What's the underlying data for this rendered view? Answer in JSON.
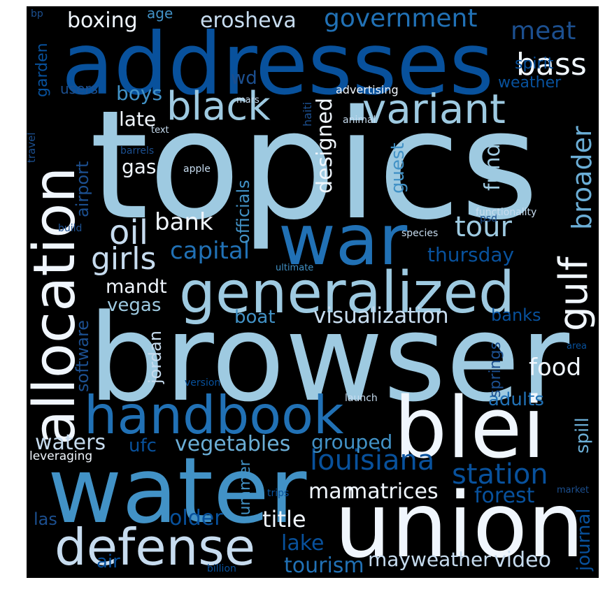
{
  "words": {
    "topics": "topics",
    "browser": "browser",
    "addresses": "addresses",
    "water": "water",
    "union": "union",
    "blei": "blei",
    "war": "war",
    "generalized": "generalized",
    "allocation": "allocation",
    "handbook": "handbook",
    "defense": "defense",
    "variant": "variant",
    "black": "black",
    "louisiana": "louisiana",
    "gulf": "gulf",
    "oil": "oil",
    "girls": "girls",
    "bass": "bass",
    "broader": "broader",
    "government": "government",
    "erosheva": "erosheva",
    "boxing": "boxing",
    "meat": "meat",
    "tour": "tour",
    "bank": "bank",
    "capital": "capital",
    "visualization": "visualization",
    "station": "station",
    "food": "food",
    "matrices": "matrices",
    "man": "man",
    "title": "title",
    "older": "older",
    "mayweather": "mayweather",
    "video": "video",
    "tourism": "tourism",
    "lake": "lake",
    "waters": "waters",
    "vegetables": "vegetables",
    "grouped": "grouped",
    "forest": "forest",
    "adults": "adults",
    "spill": "spill",
    "journal": "journal",
    "designed": "designed",
    "fund": "fund",
    "guest": "guest",
    "officials": "officials",
    "airport": "airport",
    "software": "software",
    "jordan": "jordan",
    "summer": "summer",
    "springs": "springs",
    "banks": "banks",
    "thursday": "thursday",
    "mandt": "mandt",
    "vegas": "vegas",
    "boat": "boat",
    "gas": "gas",
    "late": "late",
    "boys": "boys",
    "users": "users",
    "garden": "garden",
    "bp": "bp",
    "age": "age",
    "wd": "wd",
    "spirit": "spirit",
    "weather": "weather",
    "advertising": "advertising",
    "mars": "mars",
    "haiti": "haiti",
    "animal": "animal",
    "text": "text",
    "travel": "travel",
    "barrels": "barrels",
    "apple": "apple",
    "build": "build",
    "psd": "psd",
    "functionality": "functionality",
    "species": "species",
    "ultimate": "ultimate",
    "version": "version",
    "launch": "launch",
    "leveraging": "leveraging",
    "ufc": "ufc",
    "las": "las",
    "air": "air",
    "trips": "trips",
    "market": "market",
    "area": "area",
    "billion": "billion"
  }
}
